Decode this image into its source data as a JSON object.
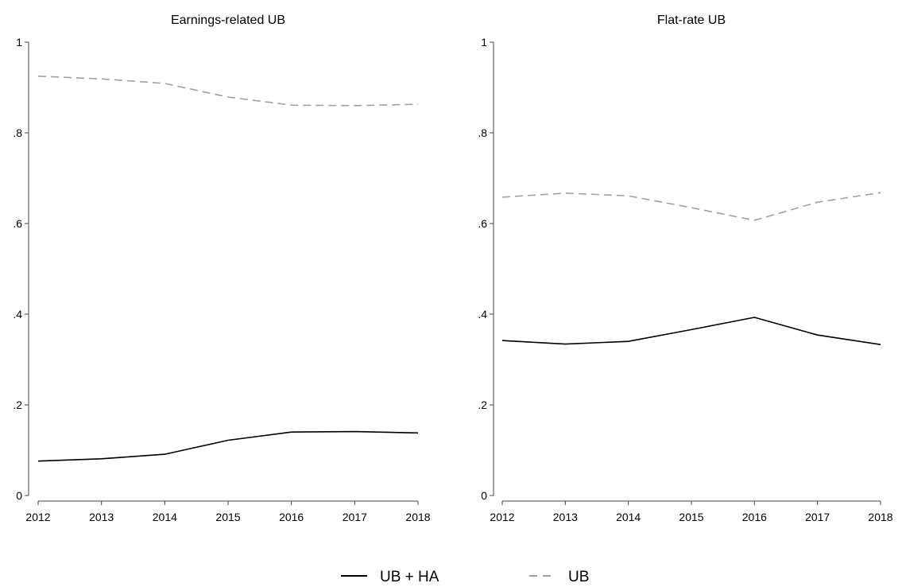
{
  "chart_data": [
    {
      "type": "line",
      "title": "Earnings-related UB",
      "x": [
        2012,
        2013,
        2014,
        2015,
        2016,
        2017,
        2018
      ],
      "x_tick_labels": [
        "2012",
        "2013",
        "2014",
        "2015",
        "2016",
        "2017",
        "2018"
      ],
      "ylim": [
        0,
        1
      ],
      "y_ticks": [
        0,
        0.2,
        0.4,
        0.6,
        0.8,
        1
      ],
      "y_tick_labels": [
        "0",
        ".2",
        ".4",
        ".6",
        ".8",
        "1"
      ],
      "xlabel": "",
      "ylabel": "",
      "grid": false,
      "series": [
        {
          "name": "UB + HA",
          "values": [
            0.076,
            0.081,
            0.091,
            0.122,
            0.14,
            0.141,
            0.138
          ],
          "color": "#000000",
          "dash": "solid"
        },
        {
          "name": "UB",
          "values": [
            0.925,
            0.919,
            0.909,
            0.879,
            0.861,
            0.86,
            0.863
          ],
          "color": "#a0a0a0",
          "dash": "dashed"
        }
      ]
    },
    {
      "type": "line",
      "title": "Flat-rate UB",
      "x": [
        2012,
        2013,
        2014,
        2015,
        2016,
        2017,
        2018
      ],
      "x_tick_labels": [
        "2012",
        "2013",
        "2014",
        "2015",
        "2016",
        "2017",
        "2018"
      ],
      "ylim": [
        0,
        1
      ],
      "y_ticks": [
        0,
        0.2,
        0.4,
        0.6,
        0.8,
        1
      ],
      "y_tick_labels": [
        "0",
        ".2",
        ".4",
        ".6",
        ".8",
        "1"
      ],
      "xlabel": "",
      "ylabel": "",
      "grid": false,
      "series": [
        {
          "name": "UB + HA",
          "values": [
            0.342,
            0.334,
            0.34,
            0.366,
            0.393,
            0.354,
            0.333
          ],
          "color": "#000000",
          "dash": "solid"
        },
        {
          "name": "UB",
          "values": [
            0.658,
            0.667,
            0.661,
            0.635,
            0.607,
            0.647,
            0.668
          ],
          "color": "#a0a0a0",
          "dash": "dashed"
        }
      ]
    }
  ],
  "legend": {
    "placement": "bottom-center",
    "items": [
      {
        "label": "UB + HA",
        "color": "#000000",
        "dash": "solid"
      },
      {
        "label": "UB",
        "color": "#a0a0a0",
        "dash": "dashed"
      }
    ]
  }
}
